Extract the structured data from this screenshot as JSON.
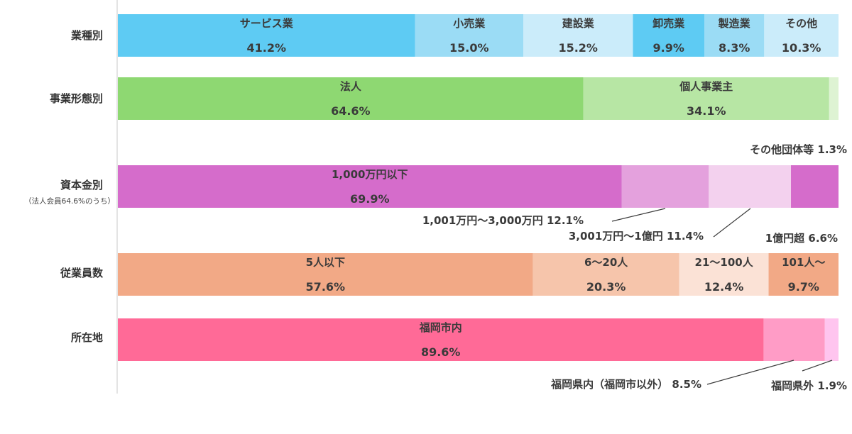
{
  "chart_data": {
    "type": "bar",
    "orientation": "horizontal",
    "stacked": true,
    "unit": "%",
    "rows": [
      {
        "label": "業種別",
        "sublabel": "",
        "segments": [
          {
            "name": "サービス業",
            "value": 41.2,
            "value_label": "41.2%",
            "color": "#5ecbf3",
            "label_mode": "inside"
          },
          {
            "name": "小売業",
            "value": 15.0,
            "value_label": "15.0%",
            "color": "#9bdcf5",
            "label_mode": "inside"
          },
          {
            "name": "建設業",
            "value": 15.2,
            "value_label": "15.2%",
            "color": "#cbecfa",
            "label_mode": "inside"
          },
          {
            "name": "卸売業",
            "value": 9.9,
            "value_label": "9.9%",
            "color": "#5ecbf3",
            "label_mode": "inside"
          },
          {
            "name": "製造業",
            "value": 8.3,
            "value_label": "8.3%",
            "color": "#9bdcf5",
            "label_mode": "inside"
          },
          {
            "name": "その他",
            "value": 10.3,
            "value_label": "10.3%",
            "color": "#cbecfa",
            "label_mode": "inside"
          }
        ]
      },
      {
        "label": "事業形態別",
        "sublabel": "",
        "segments": [
          {
            "name": "法人",
            "value": 64.6,
            "value_label": "64.6%",
            "color": "#8ed872",
            "label_mode": "inside"
          },
          {
            "name": "個人事業主",
            "value": 34.1,
            "value_label": "34.1%",
            "color": "#b7e6a4",
            "label_mode": "inside"
          },
          {
            "name": "その他団体等",
            "value": 1.3,
            "value_label": "1.3%",
            "color": "#def3d3",
            "label_mode": "above"
          }
        ]
      },
      {
        "label": "資本金別",
        "sublabel": "（法人会員64.6%のうち）",
        "segments": [
          {
            "name": "1,000万円以下",
            "value": 69.9,
            "value_label": "69.9%",
            "color": "#d56ccb",
            "label_mode": "inside"
          },
          {
            "name": "1,001万円～3,000万円",
            "value": 12.1,
            "value_label": "12.1%",
            "color": "#e4a1dd",
            "label_mode": "callout"
          },
          {
            "name": "3,001万円～1億円",
            "value": 11.4,
            "value_label": "11.4%",
            "color": "#f3d1ee",
            "label_mode": "callout"
          },
          {
            "name": "1億円超",
            "value": 6.6,
            "value_label": "6.6%",
            "color": "#d56ccb",
            "label_mode": "below"
          }
        ]
      },
      {
        "label": "従業員数",
        "sublabel": "",
        "segments": [
          {
            "name": "5人以下",
            "value": 57.6,
            "value_label": "57.6%",
            "color": "#f2a986",
            "label_mode": "inside"
          },
          {
            "name": "6～20人",
            "value": 20.3,
            "value_label": "20.3%",
            "color": "#f6c5ab",
            "label_mode": "inside"
          },
          {
            "name": "21～100人",
            "value": 12.4,
            "value_label": "12.4%",
            "color": "#fbe2d6",
            "label_mode": "inside"
          },
          {
            "name": "101人～",
            "value": 9.7,
            "value_label": "9.7%",
            "color": "#f2a986",
            "label_mode": "inside"
          }
        ]
      },
      {
        "label": "所在地",
        "sublabel": "",
        "segments": [
          {
            "name": "福岡市内",
            "value": 89.6,
            "value_label": "89.6%",
            "color": "#ff6a97",
            "label_mode": "inside"
          },
          {
            "name": "福岡県内（福岡市以外）",
            "value": 8.5,
            "value_label": "8.5%",
            "color": "#ff9cc6",
            "label_mode": "callout"
          },
          {
            "name": "福岡県外",
            "value": 1.9,
            "value_label": "1.9%",
            "color": "#ffc5ef",
            "label_mode": "callout"
          }
        ]
      }
    ]
  }
}
